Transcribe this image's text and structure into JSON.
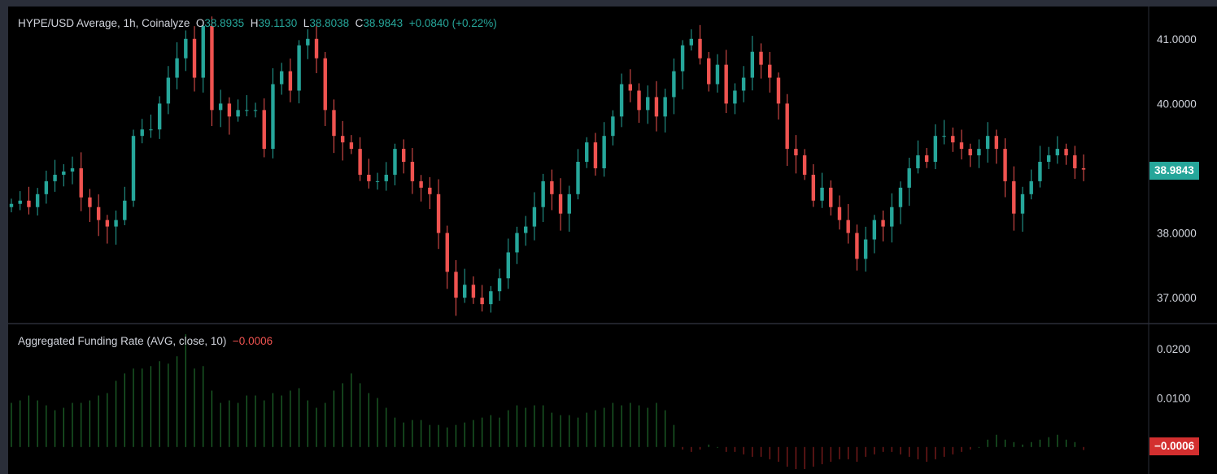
{
  "price_legend": {
    "symbol": "HYPE/USD Average, 1h, Coinalyze",
    "open_label": "O",
    "open": "38.8935",
    "high_label": "H",
    "high": "39.1130",
    "low_label": "L",
    "low": "38.8038",
    "close_label": "C",
    "close": "38.9843",
    "change": "+0.0840 (+0.22%)"
  },
  "funding_legend": {
    "name": "Aggregated Funding Rate (AVG, close, 10)",
    "value": "−0.0006"
  },
  "price_axis_tag": "38.9843",
  "funding_axis_tag": "−0.0006",
  "colors": {
    "up": "#26a69a",
    "down": "#ef5350",
    "funding_pos": "#1f6b2c",
    "funding_neg": "#8b1f1f"
  },
  "chart_data": [
    {
      "type": "candlestick",
      "title": "HYPE/USD Average, 1h, Coinalyze",
      "ylim": [
        36.6,
        41.5
      ],
      "yticks": [
        "41.0000",
        "40.0000",
        "39.0000",
        "38.0000",
        "37.0000"
      ],
      "ytick_values": [
        41,
        40,
        39,
        38,
        37
      ],
      "close_path": [
        38.45,
        38.5,
        38.4,
        38.6,
        38.8,
        38.9,
        38.95,
        39.0,
        38.55,
        38.4,
        38.2,
        38.1,
        38.2,
        38.5,
        39.5,
        39.6,
        39.6,
        40.0,
        40.4,
        40.7,
        41.0,
        40.4,
        41.2,
        39.9,
        40.0,
        39.8,
        39.9,
        39.9,
        39.9,
        39.3,
        40.3,
        40.5,
        40.2,
        40.9,
        41.0,
        40.7,
        39.9,
        39.5,
        39.4,
        39.3,
        38.9,
        38.8,
        38.8,
        38.9,
        39.3,
        39.1,
        38.8,
        38.7,
        38.6,
        38.0,
        37.4,
        37.0,
        37.2,
        37.0,
        36.9,
        37.1,
        37.3,
        37.7,
        38.0,
        38.1,
        38.4,
        38.8,
        38.6,
        38.3,
        38.6,
        39.1,
        39.4,
        39.0,
        39.5,
        39.8,
        40.3,
        40.2,
        39.9,
        40.1,
        39.8,
        40.1,
        40.5,
        40.9,
        41.0,
        40.7,
        40.3,
        40.6,
        40.0,
        40.2,
        40.4,
        40.8,
        40.6,
        40.4,
        40.0,
        39.3,
        39.2,
        38.9,
        38.5,
        38.7,
        38.4,
        38.2,
        38.0,
        37.6,
        37.9,
        38.2,
        38.1,
        38.4,
        38.7,
        39.0,
        39.2,
        39.1,
        39.5,
        39.5,
        39.4,
        39.3,
        39.2,
        39.3,
        39.5,
        39.3,
        38.8,
        38.3,
        38.6,
        38.8,
        39.1,
        39.2,
        39.3,
        39.2,
        39.0,
        38.98
      ]
    },
    {
      "type": "bar",
      "title": "Aggregated Funding Rate (AVG, close, 10)",
      "ylim": [
        -0.0055,
        0.025
      ],
      "yticks": [
        "0.0200",
        "0.0100"
      ],
      "ytick_values": [
        0.02,
        0.01
      ],
      "values": [
        0.009,
        0.0095,
        0.0105,
        0.0095,
        0.0085,
        0.0075,
        0.008,
        0.009,
        0.009,
        0.0095,
        0.0105,
        0.011,
        0.0135,
        0.015,
        0.016,
        0.016,
        0.0165,
        0.0175,
        0.017,
        0.0185,
        0.023,
        0.016,
        0.0165,
        0.0115,
        0.009,
        0.0095,
        0.009,
        0.0105,
        0.0105,
        0.0095,
        0.011,
        0.0105,
        0.0115,
        0.012,
        0.0095,
        0.008,
        0.009,
        0.0115,
        0.013,
        0.015,
        0.013,
        0.011,
        0.01,
        0.008,
        0.006,
        0.005,
        0.0055,
        0.0055,
        0.0045,
        0.0045,
        0.004,
        0.0045,
        0.005,
        0.0055,
        0.006,
        0.0065,
        0.006,
        0.0075,
        0.0085,
        0.008,
        0.0085,
        0.0085,
        0.007,
        0.0065,
        0.0065,
        0.006,
        0.007,
        0.0075,
        0.008,
        0.009,
        0.0085,
        0.009,
        0.0085,
        0.008,
        0.009,
        0.0075,
        0.0045,
        -0.0005,
        -0.001,
        -0.0005,
        0.0005,
        0.0,
        -0.001,
        -0.001,
        -0.0015,
        -0.002,
        -0.002,
        -0.0025,
        -0.003,
        -0.004,
        -0.0045,
        -0.0045,
        -0.004,
        -0.0035,
        -0.003,
        -0.0025,
        -0.0025,
        -0.003,
        -0.002,
        -0.0015,
        -0.001,
        -0.001,
        -0.0015,
        -0.002,
        -0.0025,
        -0.003,
        -0.0025,
        -0.002,
        -0.0015,
        -0.001,
        -0.0005,
        0.0,
        0.0015,
        0.0025,
        0.0015,
        0.001,
        0.0005,
        0.001,
        0.0015,
        0.002,
        0.0025,
        0.0015,
        0.001,
        -0.0006
      ]
    }
  ]
}
